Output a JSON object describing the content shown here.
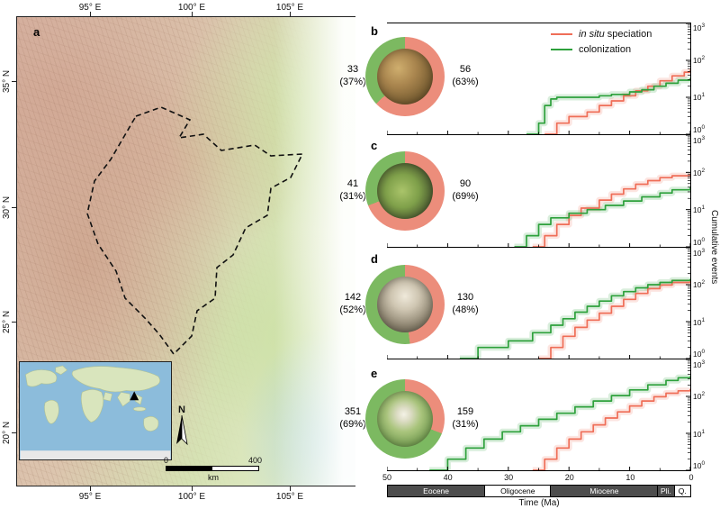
{
  "figure": {
    "colors": {
      "in_situ": "#ef6e58",
      "colonization": "#2ea13c",
      "donut_red": "#ec8d7b",
      "donut_green": "#7cb961",
      "epoch_dark": "#4d4d4d"
    },
    "panel_a": {
      "label": "a"
    },
    "map": {
      "top_lon_labels": [
        "95° E",
        "100° E",
        "105° E"
      ],
      "bottom_lon_labels": [
        "95° E",
        "100° E",
        "105° E"
      ],
      "lat_labels": [
        "35° N",
        "30° N",
        "25° N",
        "20° N"
      ],
      "north_label": "N",
      "scale_bar": {
        "start": "0",
        "end": "400",
        "unit": "km"
      }
    },
    "legend": {
      "in_situ_italic": "in situ",
      "in_situ_rest": " speciation",
      "colonization": "colonization"
    },
    "donut_panels": [
      {
        "letter": "b",
        "photo": "toad",
        "left_value": "33",
        "left_pct": "(37%)",
        "right_value": "56",
        "right_pct": "(63%)",
        "green_pct": 37,
        "red_pct": 63
      },
      {
        "letter": "c",
        "photo": "lizard",
        "left_value": "41",
        "left_pct": "(31%)",
        "right_value": "90",
        "right_pct": "(69%)",
        "green_pct": 31,
        "red_pct": 69
      },
      {
        "letter": "d",
        "photo": "monkey",
        "left_value": "142",
        "left_pct": "(52%)",
        "right_value": "130",
        "right_pct": "(48%)",
        "green_pct": 52,
        "red_pct": 48
      },
      {
        "letter": "e",
        "photo": "crane",
        "left_value": "351",
        "left_pct": "(69%)",
        "right_value": "159",
        "right_pct": "(31%)",
        "green_pct": 69,
        "red_pct": 31
      }
    ],
    "axis": {
      "x_ticks": [
        "50",
        "40",
        "30",
        "20",
        "10",
        "0"
      ],
      "x_label": "Time (Ma)",
      "y_label": "Cumulative events",
      "y_base": "10",
      "y_exponents": [
        "3",
        "2",
        "1",
        "0"
      ]
    },
    "epochs": [
      {
        "name": "Eocene",
        "from": 50,
        "to": 33.9,
        "style": "dark"
      },
      {
        "name": "Oligocene",
        "from": 33.9,
        "to": 23,
        "style": "light"
      },
      {
        "name": "Miocene",
        "from": 23,
        "to": 5.3,
        "style": "dark"
      },
      {
        "name": "Pli.",
        "from": 5.3,
        "to": 2.6,
        "style": "dark"
      },
      {
        "name": "Q.",
        "from": 2.6,
        "to": 0,
        "style": "light"
      }
    ]
  },
  "chart_data": [
    {
      "type": "line",
      "panel": "b",
      "x_axis": {
        "label": "Time (Ma)",
        "range": [
          50,
          0
        ],
        "direction": "reversed"
      },
      "y_axis": {
        "label": "Cumulative events",
        "scale": "log",
        "range": [
          1,
          1000
        ]
      },
      "series": [
        {
          "name": "in situ speciation",
          "color_key": "in_situ",
          "total": 56,
          "points": [
            [
              24,
              1
            ],
            [
              22,
              2
            ],
            [
              20,
              3
            ],
            [
              17,
              4
            ],
            [
              15,
              6
            ],
            [
              13,
              8
            ],
            [
              11,
              11
            ],
            [
              9,
              15
            ],
            [
              7,
              20
            ],
            [
              5,
              28
            ],
            [
              3,
              38
            ],
            [
              1,
              48
            ],
            [
              0,
              56
            ]
          ]
        },
        {
          "name": "colonization",
          "color_key": "colonization",
          "total": 33,
          "points": [
            [
              27,
              1
            ],
            [
              25,
              2
            ],
            [
              24,
              6
            ],
            [
              23,
              9
            ],
            [
              22,
              10
            ],
            [
              18,
              10
            ],
            [
              15,
              11
            ],
            [
              13,
              12
            ],
            [
              10,
              14
            ],
            [
              8,
              16
            ],
            [
              6,
              20
            ],
            [
              4,
              24
            ],
            [
              2,
              29
            ],
            [
              0,
              33
            ]
          ]
        }
      ]
    },
    {
      "type": "line",
      "panel": "c",
      "x_axis": {
        "label": "Time (Ma)",
        "range": [
          50,
          0
        ],
        "direction": "reversed"
      },
      "y_axis": {
        "label": "Cumulative events",
        "scale": "log",
        "range": [
          1,
          1000
        ]
      },
      "series": [
        {
          "name": "in situ speciation",
          "color_key": "in_situ",
          "total": 90,
          "points": [
            [
              26,
              1
            ],
            [
              24,
              2
            ],
            [
              22,
              4
            ],
            [
              20,
              7
            ],
            [
              18,
              11
            ],
            [
              15,
              18
            ],
            [
              13,
              26
            ],
            [
              11,
              36
            ],
            [
              9,
              48
            ],
            [
              7,
              60
            ],
            [
              5,
              72
            ],
            [
              3,
              81
            ],
            [
              0,
              90
            ]
          ]
        },
        {
          "name": "colonization",
          "color_key": "colonization",
          "total": 41,
          "points": [
            [
              29,
              1
            ],
            [
              27,
              2
            ],
            [
              25,
              4
            ],
            [
              23,
              6
            ],
            [
              20,
              8
            ],
            [
              17,
              10
            ],
            [
              14,
              13
            ],
            [
              11,
              17
            ],
            [
              8,
              22
            ],
            [
              5,
              28
            ],
            [
              3,
              34
            ],
            [
              0,
              41
            ]
          ]
        }
      ]
    },
    {
      "type": "line",
      "panel": "d",
      "x_axis": {
        "label": "Time (Ma)",
        "range": [
          50,
          0
        ],
        "direction": "reversed"
      },
      "y_axis": {
        "label": "Cumulative events",
        "scale": "log",
        "range": [
          1,
          1000
        ]
      },
      "series": [
        {
          "name": "in situ speciation",
          "color_key": "in_situ",
          "total": 130,
          "points": [
            [
              25,
              1
            ],
            [
              23,
              2
            ],
            [
              21,
              4
            ],
            [
              19,
              7
            ],
            [
              17,
              11
            ],
            [
              15,
              17
            ],
            [
              13,
              26
            ],
            [
              11,
              40
            ],
            [
              9,
              58
            ],
            [
              7,
              78
            ],
            [
              5,
              98
            ],
            [
              3,
              115
            ],
            [
              0,
              130
            ]
          ]
        },
        {
          "name": "colonization",
          "color_key": "colonization",
          "total": 142,
          "points": [
            [
              38,
              1
            ],
            [
              35,
              2
            ],
            [
              30,
              3
            ],
            [
              26,
              5
            ],
            [
              23,
              8
            ],
            [
              21,
              12
            ],
            [
              19,
              18
            ],
            [
              17,
              26
            ],
            [
              15,
              36
            ],
            [
              13,
              50
            ],
            [
              11,
              65
            ],
            [
              9,
              82
            ],
            [
              7,
              100
            ],
            [
              5,
              115
            ],
            [
              3,
              130
            ],
            [
              0,
              142
            ]
          ]
        }
      ]
    },
    {
      "type": "line",
      "panel": "e",
      "x_axis": {
        "label": "Time (Ma)",
        "range": [
          50,
          0
        ],
        "direction": "reversed"
      },
      "y_axis": {
        "label": "Cumulative events",
        "scale": "log",
        "range": [
          1,
          1000
        ]
      },
      "series": [
        {
          "name": "in situ speciation",
          "color_key": "in_situ",
          "total": 159,
          "points": [
            [
              26,
              1
            ],
            [
              24,
              2
            ],
            [
              22,
              4
            ],
            [
              20,
              7
            ],
            [
              18,
              11
            ],
            [
              16,
              17
            ],
            [
              14,
              26
            ],
            [
              12,
              38
            ],
            [
              10,
              55
            ],
            [
              8,
              75
            ],
            [
              6,
              98
            ],
            [
              4,
              122
            ],
            [
              2,
              142
            ],
            [
              0,
              159
            ]
          ]
        },
        {
          "name": "colonization",
          "color_key": "colonization",
          "total": 351,
          "points": [
            [
              43,
              1
            ],
            [
              40,
              2
            ],
            [
              37,
              4
            ],
            [
              34,
              7
            ],
            [
              31,
              11
            ],
            [
              28,
              16
            ],
            [
              25,
              24
            ],
            [
              22,
              35
            ],
            [
              19,
              52
            ],
            [
              16,
              75
            ],
            [
              13,
              105
            ],
            [
              10,
              150
            ],
            [
              7,
              205
            ],
            [
              4,
              270
            ],
            [
              2,
              320
            ],
            [
              0,
              351
            ]
          ]
        }
      ]
    }
  ]
}
